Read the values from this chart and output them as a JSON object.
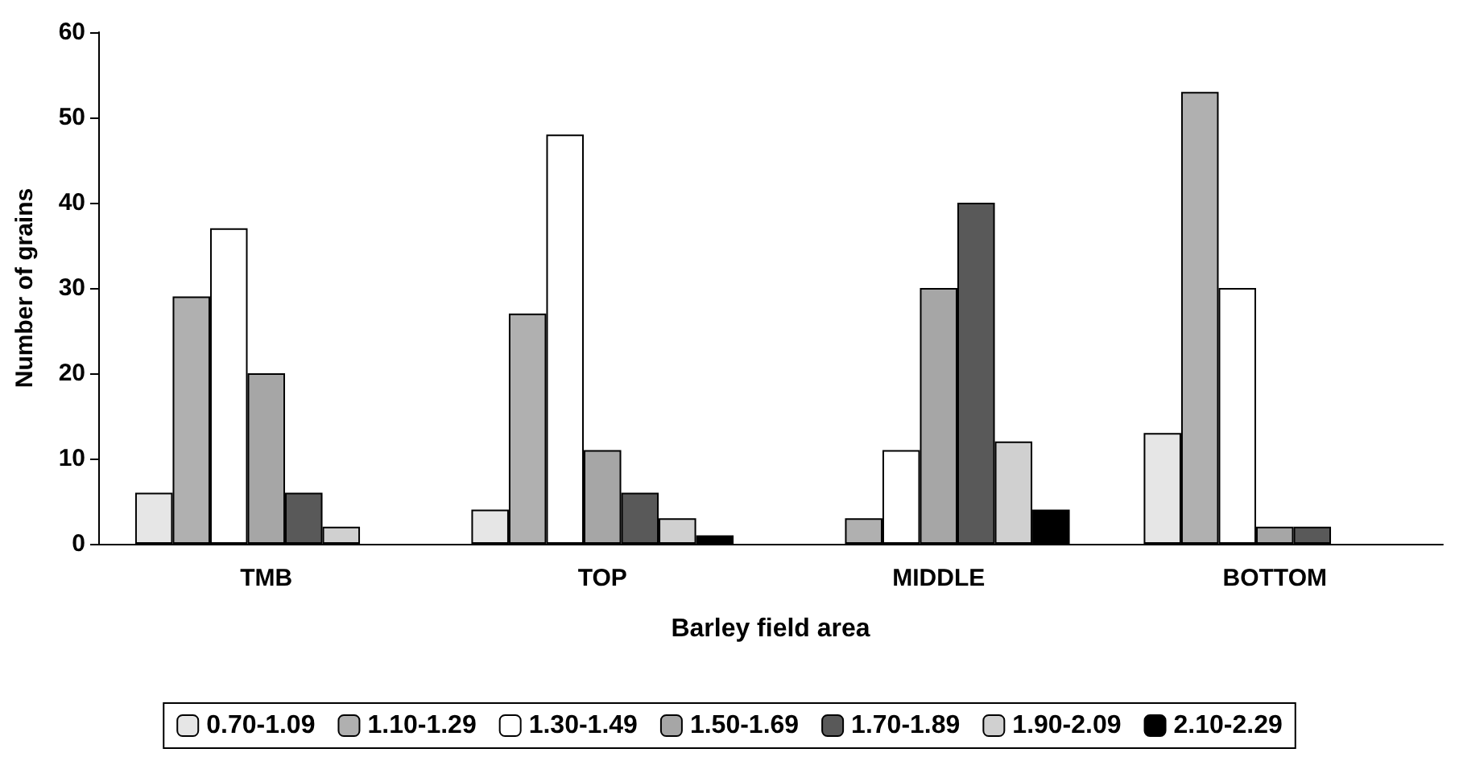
{
  "chart_data": {
    "type": "bar",
    "xlabel": "Barley field area",
    "ylabel": "Number of grains",
    "categories": [
      "TMB",
      "TOP",
      "MIDDLE",
      "BOTTOM"
    ],
    "series": [
      {
        "name": "0.70-1.09",
        "color": "#e6e6e6",
        "values": [
          6,
          4,
          null,
          13
        ]
      },
      {
        "name": "1.10-1.29",
        "color": "#b0b0b0",
        "values": [
          29,
          27,
          3,
          53
        ]
      },
      {
        "name": "1.30-1.49",
        "color": "#ffffff",
        "values": [
          37,
          48,
          11,
          30
        ]
      },
      {
        "name": "1.50-1.69",
        "color": "#a6a6a6",
        "values": [
          20,
          11,
          30,
          2
        ]
      },
      {
        "name": "1.70-1.89",
        "color": "#595959",
        "values": [
          6,
          6,
          40,
          2
        ]
      },
      {
        "name": "1.90-2.09",
        "color": "#d0d0d0",
        "values": [
          2,
          3,
          12,
          null
        ]
      },
      {
        "name": "2.10-2.29",
        "color": "#000000",
        "values": [
          null,
          1,
          4,
          null
        ]
      }
    ],
    "ylim": [
      0,
      60
    ],
    "yticks": [
      0,
      10,
      20,
      30,
      40,
      50,
      60
    ],
    "grid": false,
    "legend": "bottom"
  }
}
